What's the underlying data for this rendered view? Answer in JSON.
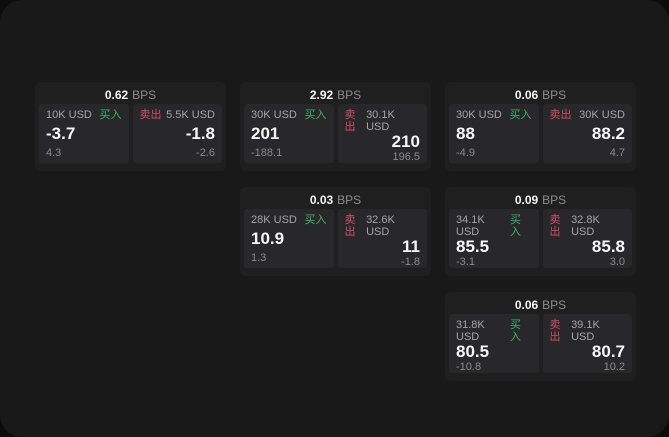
{
  "labels": {
    "unit": "BPS",
    "buy": "买入",
    "sell": "卖出"
  },
  "colors": {
    "backdrop": "#0c0c0c",
    "surface": "#191919",
    "card": "#1f1f20",
    "panel": "#28282a",
    "buy_accent": "#3db368",
    "sell_accent": "#cf4f66"
  },
  "cards": [
    {
      "bps": "0.62",
      "buy": {
        "amount": "10K USD",
        "value": "-3.7",
        "delta": "4.3"
      },
      "sell": {
        "amount": "5.5K USD",
        "value": "-1.8",
        "delta": "-2.6"
      }
    },
    {
      "bps": "2.92",
      "buy": {
        "amount": "30K USD",
        "value": "201",
        "delta": "-188.1"
      },
      "sell": {
        "amount": "30.1K USD",
        "value": "210",
        "delta": "196.5"
      }
    },
    {
      "bps": "0.06",
      "buy": {
        "amount": "30K USD",
        "value": "88",
        "delta": "-4.9"
      },
      "sell": {
        "amount": "30K USD",
        "value": "88.2",
        "delta": "4.7"
      }
    },
    {
      "bps": "0.03",
      "buy": {
        "amount": "28K USD",
        "value": "10.9",
        "delta": "1.3"
      },
      "sell": {
        "amount": "32.6K USD",
        "value": "11",
        "delta": "-1.8"
      }
    },
    {
      "bps": "0.09",
      "buy": {
        "amount": "34.1K USD",
        "value": "85.5",
        "delta": "-3.1"
      },
      "sell": {
        "amount": "32.8K USD",
        "value": "85.8",
        "delta": "3.0"
      }
    },
    {
      "bps": "0.06",
      "buy": {
        "amount": "31.8K USD",
        "value": "80.5",
        "delta": "-10.8"
      },
      "sell": {
        "amount": "39.1K USD",
        "value": "80.7",
        "delta": "10.2"
      }
    }
  ]
}
